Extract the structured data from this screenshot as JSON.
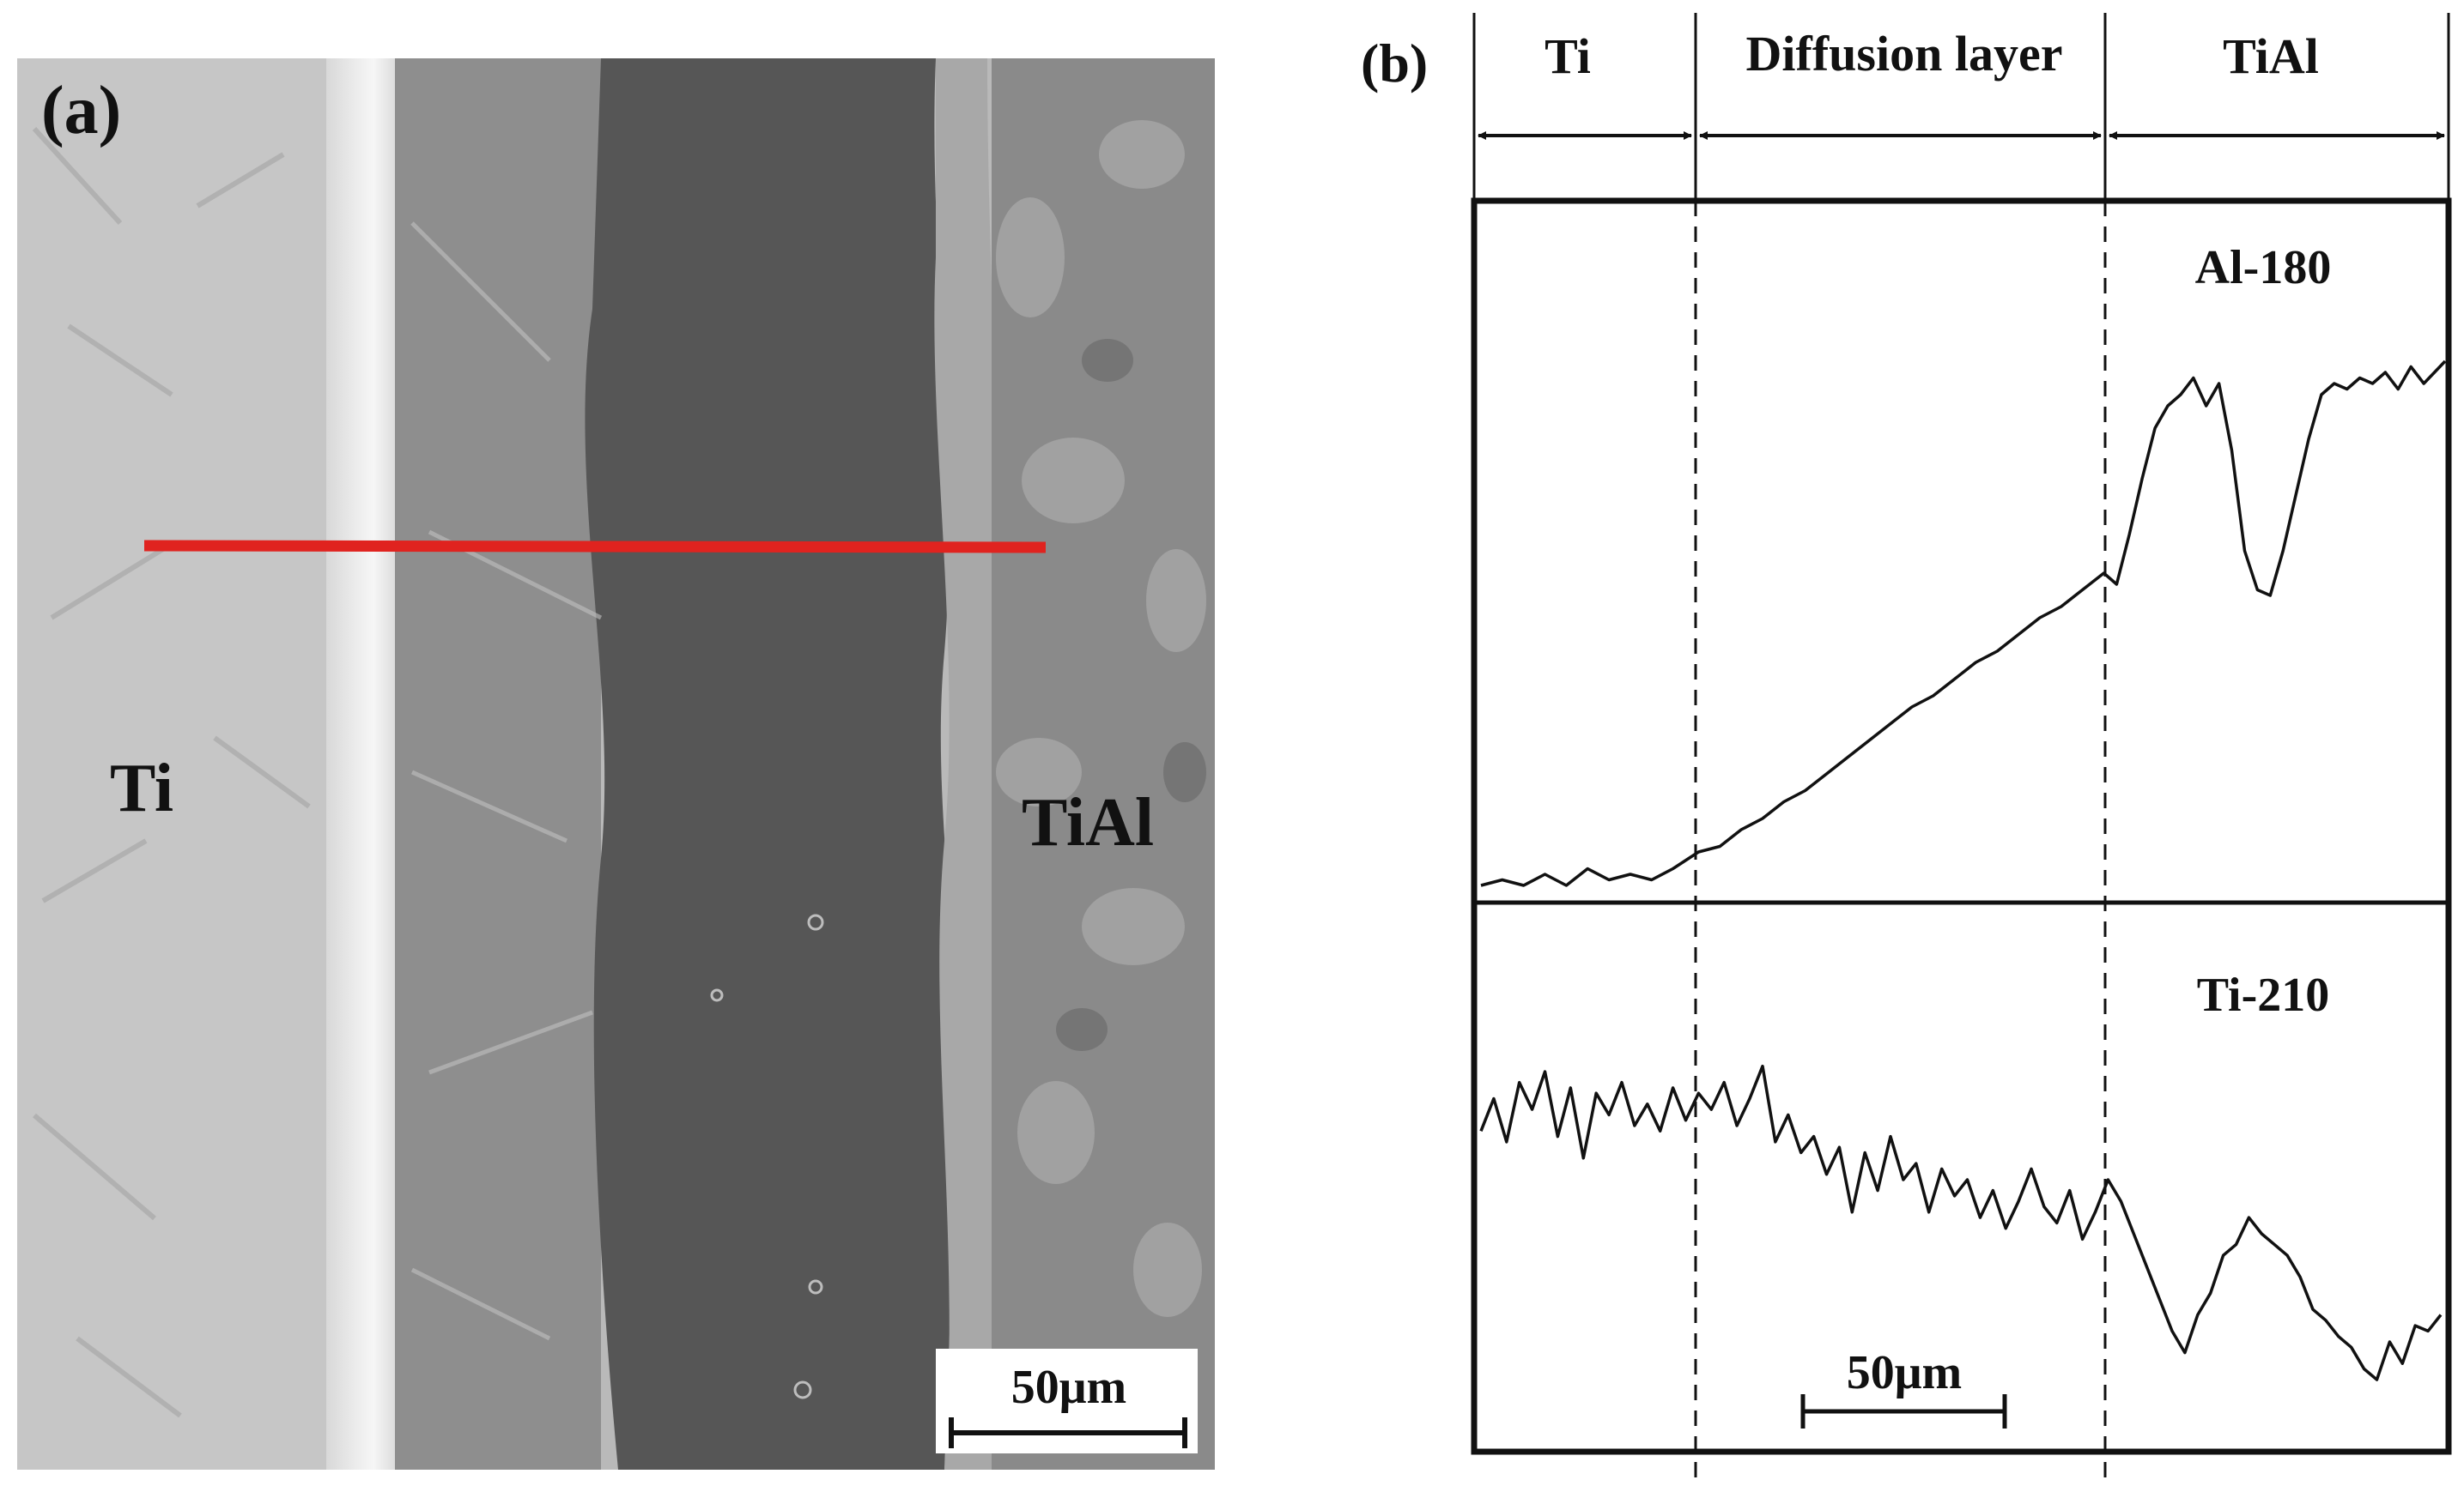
{
  "panel_a": {
    "label": "(a)",
    "left_material": "Ti",
    "right_material": "TiAl",
    "scale_bar": "50μm",
    "line_scan_color": "#e0231f"
  },
  "panel_b": {
    "label": "(b)",
    "regions": [
      "Ti",
      "Diffusion layer",
      "TiAl"
    ],
    "scale_bar": "50μm"
  },
  "chart_data": {
    "type": "line",
    "xlabel": "",
    "ylabel": "",
    "x_unit": "μm",
    "xlim": [
      0,
      226
    ],
    "region_boundaries": [
      51,
      146
    ],
    "regions": [
      "Ti",
      "Diffusion layer",
      "TiAl"
    ],
    "series": [
      {
        "name": "Al-180",
        "x": [
          0,
          5,
          10,
          15,
          20,
          25,
          30,
          35,
          40,
          45,
          51,
          56,
          61,
          66,
          71,
          76,
          81,
          86,
          91,
          96,
          101,
          106,
          111,
          116,
          121,
          126,
          131,
          136,
          141,
          146,
          149,
          152,
          155,
          158,
          161,
          164,
          167,
          170,
          173,
          176,
          179,
          182,
          185,
          188,
          191,
          194,
          197,
          200,
          203,
          206,
          209,
          212,
          215,
          218,
          221,
          226
        ],
        "values": [
          2,
          3,
          2,
          4,
          2,
          5,
          3,
          4,
          3,
          5,
          8,
          9,
          12,
          14,
          17,
          19,
          22,
          25,
          28,
          31,
          34,
          36,
          39,
          42,
          44,
          47,
          50,
          52,
          55,
          58,
          56,
          65,
          75,
          84,
          88,
          90,
          93,
          88,
          92,
          80,
          62,
          55,
          54,
          62,
          72,
          82,
          90,
          92,
          91,
          93,
          92,
          94,
          91,
          95,
          92,
          96
        ]
      },
      {
        "name": "Ti-210",
        "x": [
          0,
          3,
          6,
          9,
          12,
          15,
          18,
          21,
          24,
          27,
          30,
          33,
          36,
          39,
          42,
          45,
          48,
          51,
          54,
          57,
          60,
          63,
          66,
          69,
          72,
          75,
          78,
          81,
          84,
          87,
          90,
          93,
          96,
          99,
          102,
          105,
          108,
          111,
          114,
          117,
          120,
          123,
          126,
          129,
          132,
          135,
          138,
          141,
          144,
          147,
          150,
          153,
          156,
          159,
          162,
          165,
          168,
          171,
          174,
          177,
          180,
          183,
          186,
          189,
          192,
          195,
          198,
          201,
          204,
          207,
          210,
          213,
          216,
          219,
          222,
          225
        ],
        "values": [
          59,
          65,
          57,
          68,
          63,
          70,
          58,
          67,
          54,
          66,
          62,
          68,
          60,
          64,
          59,
          67,
          61,
          66,
          63,
          68,
          60,
          65,
          71,
          57,
          62,
          55,
          58,
          51,
          56,
          44,
          55,
          48,
          58,
          50,
          53,
          44,
          52,
          47,
          50,
          43,
          48,
          41,
          46,
          52,
          45,
          42,
          48,
          39,
          44,
          50,
          46,
          40,
          34,
          28,
          22,
          18,
          25,
          29,
          36,
          38,
          43,
          40,
          38,
          36,
          32,
          26,
          24,
          21,
          19,
          15,
          13,
          20,
          16,
          23,
          22,
          25
        ]
      }
    ]
  }
}
